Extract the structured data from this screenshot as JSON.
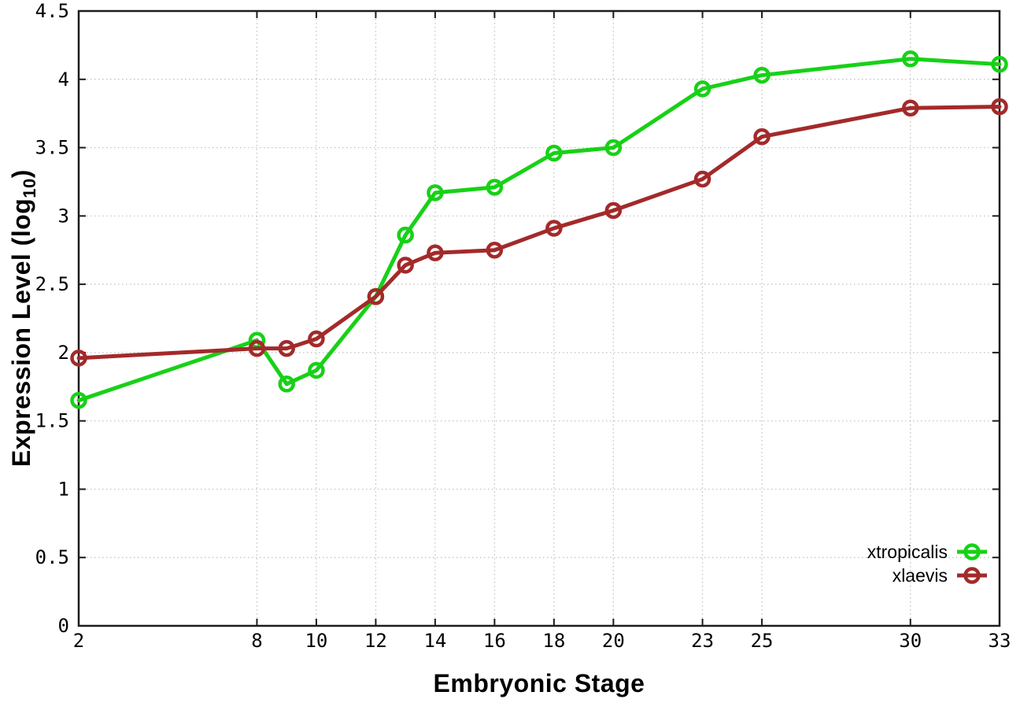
{
  "figure": {
    "background": "#ffffff"
  },
  "styles": {
    "axis_color": "#1c1c1c",
    "grid_color": "#bfbfbf",
    "tick_color": "#1c1c1c",
    "tick_label_color": "#000000"
  },
  "chart_data": {
    "type": "line",
    "title": "",
    "xlabel": "Embryonic Stage",
    "ylabel": {
      "prefix": "Expression Level (log",
      "sub": "10",
      "suffix": ")"
    },
    "xlim": [
      2,
      33
    ],
    "ylim": [
      0,
      4.5
    ],
    "grid": true,
    "legend_position": "inside-right-lower",
    "x_ticks": [
      2,
      8,
      10,
      12,
      14,
      16,
      18,
      20,
      23,
      25,
      30,
      33
    ],
    "x_tick_labels": [
      "2",
      "8",
      "10",
      "12",
      "14",
      "16",
      "18",
      "20",
      "23",
      "25",
      "30",
      "33"
    ],
    "y_ticks": [
      0,
      0.5,
      1,
      1.5,
      2,
      2.5,
      3,
      3.5,
      4,
      4.5
    ],
    "y_tick_labels": [
      "0",
      "0.5",
      "1",
      "1.5",
      "2",
      "2.5",
      "3",
      "3.5",
      "4",
      "4.5"
    ],
    "x": [
      2,
      8,
      9,
      10,
      12,
      13,
      14,
      16,
      18,
      20,
      23,
      25,
      30,
      33
    ],
    "series": [
      {
        "name": "xtropicalis",
        "color": "#17d117",
        "values": [
          1.65,
          2.09,
          1.77,
          1.87,
          2.41,
          2.86,
          3.17,
          3.21,
          3.46,
          3.5,
          3.93,
          4.03,
          4.15,
          4.11
        ]
      },
      {
        "name": "xlaevis",
        "color": "#a32a2a",
        "values": [
          1.96,
          2.03,
          2.03,
          2.1,
          2.41,
          2.64,
          2.73,
          2.75,
          2.91,
          3.04,
          3.27,
          3.58,
          3.79,
          3.8
        ]
      }
    ]
  }
}
